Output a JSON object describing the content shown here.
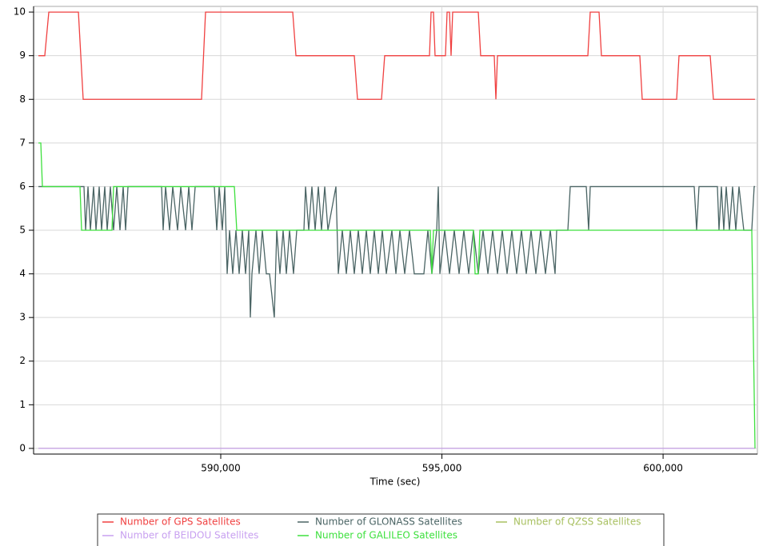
{
  "chart_data": {
    "type": "line",
    "x_label": "Time (sec)",
    "xlim": [
      585769,
      602132
    ],
    "xticks": [
      {
        "value": 590000,
        "label": "590,000"
      },
      {
        "value": 595000,
        "label": "595,000"
      },
      {
        "value": 600000,
        "label": "600,000"
      }
    ],
    "ylim": [
      -0.13,
      10.13
    ],
    "yticks": [
      0,
      1,
      2,
      3,
      4,
      5,
      6,
      7,
      8,
      9,
      10
    ],
    "grid": true,
    "legend": "bottom",
    "series": [
      {
        "name": "Number of GPS Satellites",
        "color": "#f04040",
        "x": [
          585878,
          586022,
          586113,
          586782,
          586890,
          589566,
          589656,
          591627,
          591700,
          593019,
          593092,
          593634,
          593706,
          594719,
          594755,
          594809,
          594845,
          595080,
          595117,
          595171,
          595207,
          595243,
          595822,
          595876,
          596183,
          596220,
          596256,
          598299,
          598353,
          598552,
          598606,
          599474,
          599528,
          600306,
          600360,
          601065,
          601137,
          602077
        ],
        "values": [
          9,
          9,
          10,
          10,
          8,
          8,
          10,
          10,
          9,
          9,
          8,
          8,
          9,
          9,
          10,
          10,
          9,
          9,
          10,
          10,
          9,
          10,
          10,
          9,
          9,
          8,
          9,
          9,
          10,
          10,
          9,
          9,
          8,
          8,
          9,
          9,
          8,
          8
        ]
      },
      {
        "name": "Number of GLONASS Satellites",
        "color": "#4a6464",
        "x": [
          585878,
          586908,
          586945,
          586999,
          587053,
          587125,
          587180,
          587252,
          587306,
          587378,
          587433,
          587505,
          587577,
          587650,
          587722,
          587794,
          587849,
          587903,
          588662,
          588698,
          588753,
          588843,
          588915,
          589024,
          589096,
          589205,
          589277,
          589349,
          589422,
          589855,
          589910,
          589964,
          590036,
          590091,
          590145,
          590199,
          590271,
          590344,
          590416,
          590488,
          590561,
          590633,
          590669,
          590705,
          590796,
          590868,
          590940,
          591031,
          591103,
          591211,
          591266,
          591338,
          591410,
          591483,
          591555,
          591645,
          591718,
          591880,
          591917,
          591989,
          592061,
          592134,
          592206,
          592278,
          592351,
          592423,
          592604,
          592658,
          592748,
          592839,
          592929,
          593019,
          593110,
          593200,
          593291,
          593381,
          593471,
          593562,
          593652,
          593743,
          593869,
          593960,
          594050,
          594159,
          594267,
          594375,
          594592,
          594683,
          594773,
          594882,
          594918,
          594954,
          595063,
          595171,
          595279,
          595388,
          595496,
          595605,
          595713,
          595822,
          595930,
          596039,
          596147,
          596256,
          596364,
          596473,
          596581,
          596690,
          596798,
          596907,
          597015,
          597124,
          597232,
          597341,
          597449,
          597558,
          597594,
          597847,
          597901,
          598263,
          598317,
          598353,
          600703,
          600758,
          600812,
          601228,
          601264,
          601318,
          601372,
          601427,
          601499,
          601571,
          601644,
          601716,
          601824,
          602005,
          602059,
          602078
        ],
        "values": [
          6,
          6,
          5,
          6,
          5,
          6,
          5,
          6,
          5,
          6,
          5,
          6,
          5,
          6,
          5,
          6,
          5,
          6,
          6,
          5,
          6,
          5,
          6,
          5,
          6,
          5,
          6,
          5,
          6,
          6,
          5,
          6,
          5,
          6,
          4,
          5,
          4,
          5,
          4,
          5,
          4,
          5,
          3,
          4,
          5,
          4,
          5,
          4,
          4,
          3,
          5,
          4,
          5,
          4,
          5,
          4,
          5,
          5,
          6,
          5,
          6,
          5,
          6,
          5,
          6,
          5,
          6,
          4,
          5,
          4,
          5,
          4,
          5,
          4,
          5,
          4,
          5,
          4,
          5,
          4,
          5,
          4,
          5,
          4,
          5,
          4,
          4,
          5,
          4,
          5,
          6,
          4,
          5,
          4,
          5,
          4,
          5,
          4,
          5,
          4,
          5,
          4,
          5,
          4,
          5,
          4,
          5,
          4,
          5,
          4,
          5,
          4,
          5,
          4,
          5,
          4,
          5,
          5,
          6,
          6,
          5,
          6,
          6,
          5,
          6,
          6,
          5,
          6,
          5,
          6,
          5,
          6,
          5,
          6,
          5,
          5,
          6,
          6
        ]
      },
      {
        "name": "Number of QZSS Satellites",
        "color": "#a8c060",
        "x": [
          585878,
          602078
        ],
        "values": [
          0,
          0
        ]
      },
      {
        "name": "Number of BEIDOU Satellites",
        "color": "#c8a0f0",
        "x": [
          585878,
          602078
        ],
        "values": [
          0,
          0
        ]
      },
      {
        "name": "Number of GALILEO Satellites",
        "color": "#3ee03e",
        "x": [
          585878,
          585932,
          585968,
          586818,
          586854,
          587541,
          587577,
          590307,
          590362,
          594737,
          594773,
          594809,
          595713,
          595750,
          595822,
          595858,
          602005,
          602078
        ],
        "values": [
          7,
          7,
          6,
          6,
          5,
          5,
          6,
          6,
          5,
          5,
          4,
          5,
          5,
          4,
          4,
          5,
          5,
          0
        ]
      }
    ]
  }
}
